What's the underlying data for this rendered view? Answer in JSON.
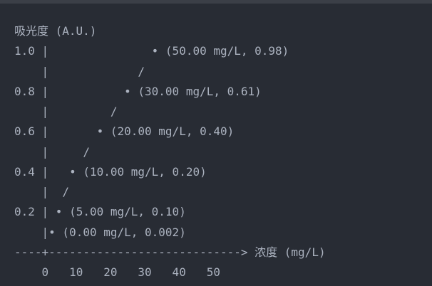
{
  "code_block": {
    "lines": [
      "吸光度 (A.U.)",
      "1.0 |               • (50.00 mg/L, 0.98)",
      "    |             /",
      "0.8 |           • (30.00 mg/L, 0.61)",
      "    |         /",
      "0.6 |       • (20.00 mg/L, 0.40)",
      "    |     /",
      "0.4 |   • (10.00 mg/L, 0.20)",
      "    |  /",
      "0.2 | • (5.00 mg/L, 0.10)",
      "    |• (0.00 mg/L, 0.002)",
      "----+----------------------------> 浓度 (mg/L)",
      "    0   10   20   30   40   50"
    ],
    "colors": {
      "background": "#282c34",
      "text": "#abb2bf"
    }
  },
  "chart_data": {
    "type": "scatter",
    "ylabel": "吸光度 (A.U.)",
    "xlabel": "浓度 (mg/L)",
    "x_ticks": [
      "0",
      "10",
      "20",
      "30",
      "40",
      "50"
    ],
    "y_ticks": [
      "0.2",
      "0.4",
      "0.6",
      "0.8",
      "1.0"
    ],
    "points": [
      {
        "x": 0.0,
        "y": 0.002,
        "label": "(0.00 mg/L, 0.002)"
      },
      {
        "x": 5.0,
        "y": 0.1,
        "label": "(5.00 mg/L, 0.10)"
      },
      {
        "x": 10.0,
        "y": 0.2,
        "label": "(10.00 mg/L, 0.20)"
      },
      {
        "x": 20.0,
        "y": 0.4,
        "label": "(20.00 mg/L, 0.40)"
      },
      {
        "x": 30.0,
        "y": 0.61,
        "label": "(30.00 mg/L, 0.61)"
      },
      {
        "x": 50.0,
        "y": 0.98,
        "label": "(50.00 mg/L, 0.98)"
      }
    ],
    "style": "ascii-art",
    "grid": false
  }
}
